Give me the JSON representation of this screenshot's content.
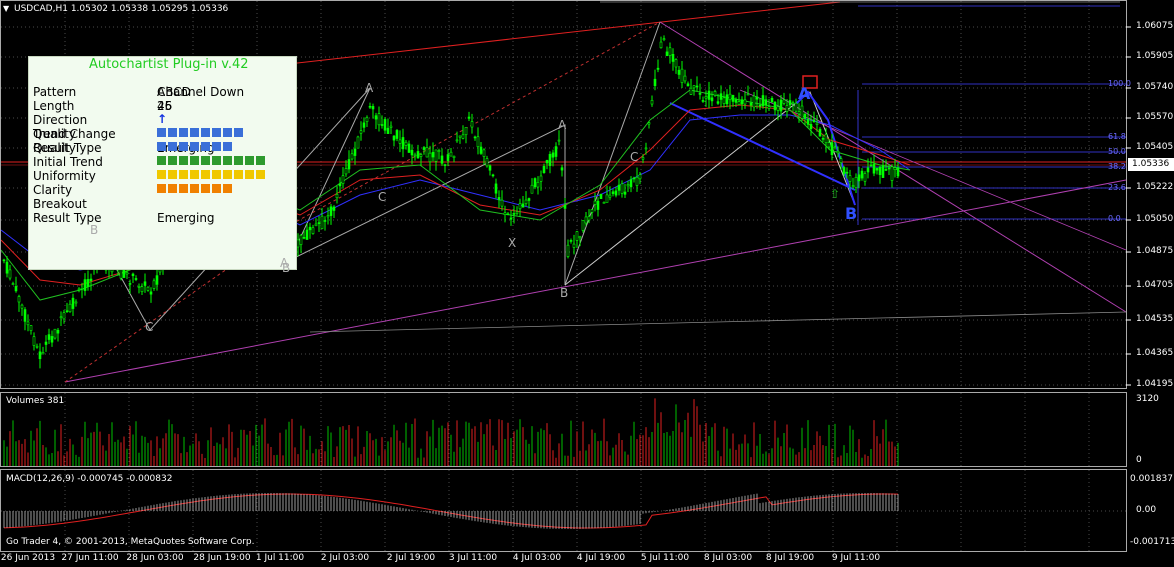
{
  "chart_header": {
    "symbol_line": "USDCAD,H1  1.05302 1.05338 1.05295 1.05336"
  },
  "autochartist": {
    "title": "Autochartist Plug-in v.42",
    "rows": [
      {
        "label": "Pattern",
        "value": "Channel Down",
        "overlay": "ABCD"
      },
      {
        "label": "Length",
        "value": "25",
        "overlay": "46"
      },
      {
        "label": "Direction",
        "value": "↑"
      },
      {
        "label": "Quality",
        "overlay_label": "Trend Change",
        "value": "Emerging"
      },
      {
        "label": "Result Type",
        "overlay_label": "Quality"
      },
      {
        "label": "Initial Trend"
      },
      {
        "label": "Uniformity"
      },
      {
        "label": "Clarity"
      },
      {
        "label": "Breakout"
      },
      {
        "label": "Result Type",
        "value": "Emerging"
      }
    ],
    "bars": [
      {
        "row": "Quality",
        "level": 0.8,
        "color": "#3a6fd8"
      },
      {
        "row": "Result Type",
        "level": 0.7,
        "color": "#3a6fd8"
      },
      {
        "row": "Initial Trend",
        "level": 1.0,
        "color": "#2e9a2e"
      },
      {
        "row": "Uniformity",
        "level": 1.0,
        "color": "#f0c800"
      },
      {
        "row": "Clarity",
        "level": 0.7,
        "color": "#f08000"
      }
    ]
  },
  "price_axis": [
    "1.06075",
    "1.05905",
    "1.05740",
    "1.05570",
    "1.05405",
    "1.05222",
    "1.05050",
    "1.04875",
    "1.04705",
    "1.04535",
    "1.04365",
    "1.04195"
  ],
  "current_price": "1.05336",
  "fib_levels": [
    "100.0",
    "61.8",
    "50.0",
    "38.2",
    "23.6",
    "0.0"
  ],
  "volumes": {
    "title": "Volumes 381",
    "max": "3120",
    "min": "0"
  },
  "macd": {
    "title": "MACD(12,26,9) -0.000745 -0.000832",
    "top": "0.001837",
    "mid": "0.00",
    "bottom": "-0.001713"
  },
  "copyright": "Go Trader 4, © 2001-2013, MetaQuotes Software Corp.",
  "time_axis": [
    "26 Jun 2013",
    "27 Jun 11:00",
    "28 Jun 03:00",
    "28 Jun 19:00",
    "1 Jul 11:00",
    "2 Jul 03:00",
    "2 Jul 19:00",
    "3 Jul 11:00",
    "4 Jul 03:00",
    "4 Jul 19:00",
    "5 Jul 11:00",
    "8 Jul 03:00",
    "8 Jul 19:00",
    "9 Jul 11:00"
  ],
  "pattern_points": [
    "B",
    "A",
    "C",
    "C",
    "X",
    "A",
    "B",
    "C",
    "A",
    "B",
    "A",
    "B"
  ],
  "colors": {
    "candle": "#00ff00",
    "grid": "#4a4a4a",
    "red_line": "#e02020",
    "magenta": "#b040b0",
    "blue": "#3030ff",
    "volume_up": "#00c000",
    "volume_down": "#e02020"
  }
}
